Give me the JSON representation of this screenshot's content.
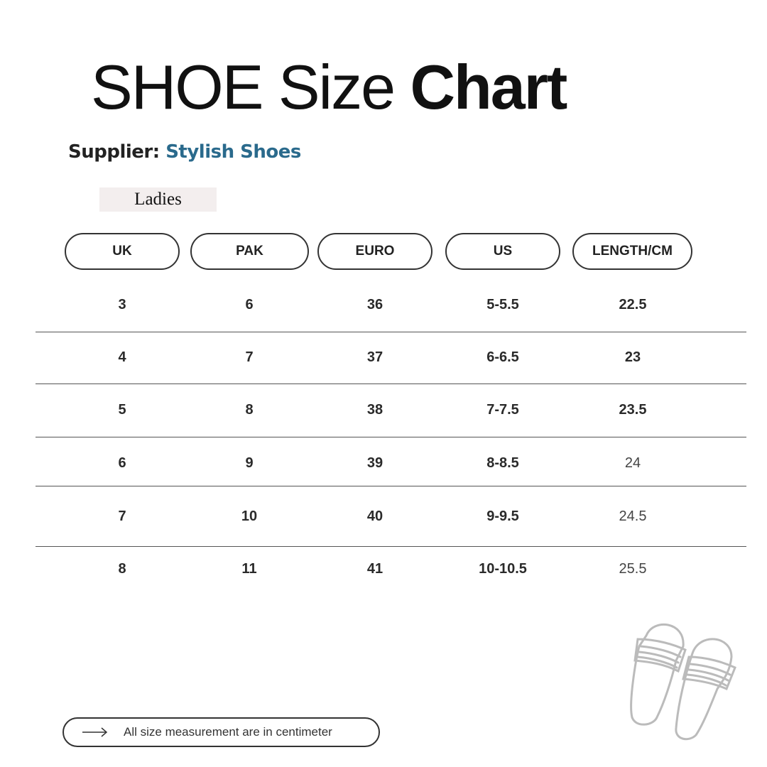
{
  "title": {
    "light": "SHOE Size ",
    "bold": "Chart"
  },
  "supplier": {
    "label": "Supplier: ",
    "name": "Stylish Shoes",
    "name_color": "#2a6a8c"
  },
  "category": "Ladies",
  "table": {
    "headers": [
      "UK",
      "PAK",
      "EURO",
      "US",
      "LENGTH/CM"
    ],
    "rows": [
      [
        "3",
        "6",
        "36",
        "5-5.5",
        "22.5"
      ],
      [
        "4",
        "7",
        "37",
        "6-6.5",
        "23"
      ],
      [
        "5",
        "8",
        "38",
        "7-7.5",
        "23.5"
      ],
      [
        "6",
        "9",
        "39",
        "8-8.5",
        "24"
      ],
      [
        "7",
        "10",
        "40",
        "9-9.5",
        "24.5"
      ],
      [
        "8",
        "11",
        "41",
        "10-10.5",
        "25.5"
      ]
    ]
  },
  "footer": {
    "icon": "arrow-right-icon",
    "note": "All size measurement are in centimeter"
  },
  "illustration": "slides-sandals-icon"
}
